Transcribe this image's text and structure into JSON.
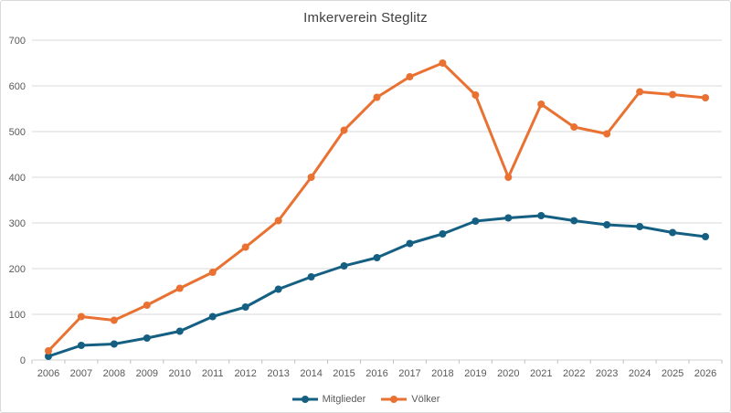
{
  "window": {
    "title": "Imkerverein Steglitz"
  },
  "chart_data": {
    "type": "line",
    "title": "Imkerverein Steglitz",
    "xlabel": "",
    "ylabel": "",
    "x": [
      "2006",
      "2007",
      "2008",
      "2009",
      "2010",
      "2011",
      "2012",
      "2013",
      "2014",
      "2015",
      "2016",
      "2017",
      "2018",
      "2019",
      "2020",
      "2021",
      "2022",
      "2023",
      "2024",
      "2025",
      "2026"
    ],
    "series": [
      {
        "name": "Mitglieder",
        "color": "#156082",
        "values": [
          8,
          32,
          35,
          48,
          63,
          95,
          116,
          155,
          182,
          206,
          224,
          255,
          276,
          304,
          311,
          316,
          305,
          296,
          292,
          279,
          270
        ]
      },
      {
        "name": "Völker",
        "color": "#E97132",
        "values": [
          20,
          95,
          87,
          120,
          157,
          192,
          247,
          305,
          400,
          503,
          575,
          620,
          650,
          580,
          400,
          560,
          510,
          495,
          587,
          581,
          574
        ]
      }
    ],
    "ylim": [
      0,
      700
    ],
    "y_ticks": [
      0,
      100,
      200,
      300,
      400,
      500,
      600,
      700
    ],
    "grid": "horizontal",
    "legend_position": "bottom",
    "marker": "circle"
  },
  "legend": {
    "items": [
      {
        "label": "Mitglieder",
        "color": "#156082"
      },
      {
        "label": "Völker",
        "color": "#E97132"
      }
    ]
  },
  "colors": {
    "background": "#ffffff",
    "border": "#d9d9d9",
    "gridline": "#d9d9d9",
    "axis_line": "#d0d0d0",
    "tick_mark": "#c0c0c0",
    "axis_text": "#595959",
    "title_text": "#404040"
  }
}
